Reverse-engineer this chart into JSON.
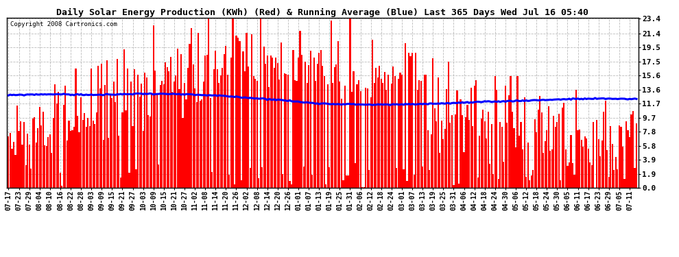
{
  "title": "Daily Solar Energy Production (KWh) (Red) & Running Average (Blue) Last 365 Days Wed Jul 16 05:40",
  "copyright_text": "Copyright 2008 Cartronics.com",
  "bar_color": "#FF0000",
  "avg_line_color": "#0000FF",
  "background_color": "#FFFFFF",
  "grid_color": "#BBBBBB",
  "yticks": [
    0.0,
    1.9,
    3.9,
    5.8,
    7.8,
    9.7,
    11.7,
    13.6,
    15.6,
    17.5,
    19.5,
    21.4,
    23.4
  ],
  "ylim": [
    0.0,
    23.4
  ],
  "title_fontsize": 9.5,
  "copyright_fontsize": 6.5,
  "tick_fontsize": 8,
  "avg_line_pts": [
    12.8,
    12.85,
    12.9,
    12.92,
    12.95,
    12.93,
    12.9,
    12.88,
    12.87,
    12.86,
    12.9,
    12.95,
    13.0,
    13.02,
    13.0,
    12.98,
    12.95,
    12.9,
    12.85,
    12.8,
    12.75,
    12.65,
    12.55,
    12.45,
    12.35,
    12.25,
    12.15,
    12.0,
    11.85,
    11.75,
    11.65,
    11.6,
    11.58,
    11.55,
    11.52,
    11.5,
    11.5,
    11.52,
    11.55,
    11.58,
    11.62,
    11.65,
    11.7,
    11.75,
    11.8,
    11.85,
    11.9,
    11.95,
    12.0,
    12.05,
    12.1,
    12.15,
    12.2,
    12.25,
    12.28,
    12.3,
    12.32,
    12.33,
    12.32,
    12.3,
    12.28
  ],
  "x_labels": [
    "07-17",
    "07-23",
    "07-29",
    "08-04",
    "08-10",
    "08-16",
    "08-22",
    "08-28",
    "09-03",
    "09-09",
    "09-15",
    "09-21",
    "09-27",
    "10-03",
    "10-09",
    "10-15",
    "10-21",
    "10-27",
    "11-02",
    "11-08",
    "11-14",
    "11-20",
    "11-26",
    "12-02",
    "12-08",
    "12-14",
    "12-20",
    "12-26",
    "01-01",
    "01-07",
    "01-13",
    "01-19",
    "01-25",
    "01-31",
    "02-06",
    "02-12",
    "02-18",
    "02-24",
    "03-01",
    "03-07",
    "03-13",
    "03-19",
    "03-25",
    "03-31",
    "04-06",
    "04-12",
    "04-18",
    "04-24",
    "04-30",
    "05-06",
    "05-12",
    "05-18",
    "05-24",
    "05-30",
    "06-05",
    "06-11",
    "06-17",
    "06-23",
    "06-29",
    "07-05",
    "07-11"
  ]
}
